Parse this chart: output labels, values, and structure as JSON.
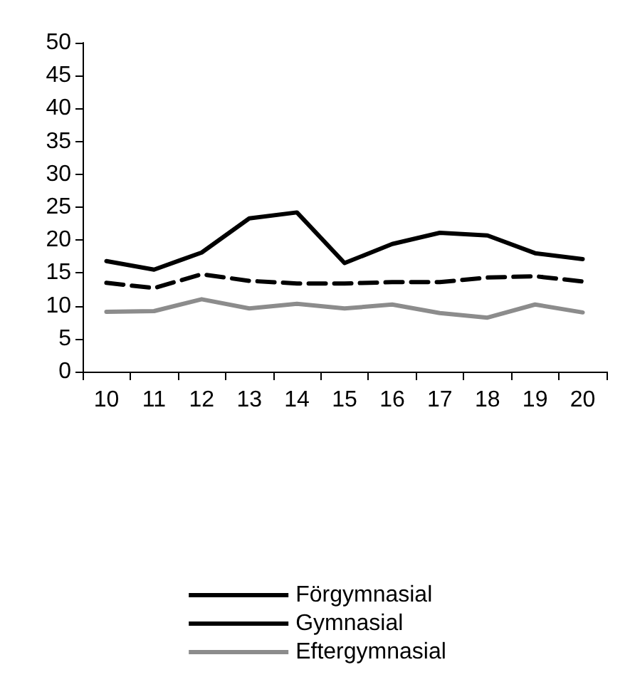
{
  "chart_data": {
    "type": "line",
    "categories": [
      "10",
      "11",
      "12",
      "13",
      "14",
      "15",
      "16",
      "17",
      "18",
      "19",
      "20"
    ],
    "series": [
      {
        "name": "Förgymnasial",
        "color": "#000000",
        "line_style": "solid",
        "values": [
          16.8,
          15.5,
          18.1,
          23.3,
          24.2,
          16.5,
          19.4,
          21.1,
          20.7,
          18.0,
          17.1
        ]
      },
      {
        "name": "Gymnasial",
        "color": "#000000",
        "line_style": "dashed",
        "values": [
          13.5,
          12.7,
          14.8,
          13.8,
          13.4,
          13.4,
          13.6,
          13.6,
          14.3,
          14.5,
          13.7
        ]
      },
      {
        "name": "Eftergymnasial",
        "color": "#8c8c8c",
        "line_style": "solid",
        "values": [
          9.1,
          9.2,
          11.0,
          9.6,
          10.3,
          9.6,
          10.2,
          8.9,
          8.2,
          10.2,
          9.0
        ]
      }
    ],
    "ylim": [
      0,
      50
    ],
    "yticks": [
      0,
      5,
      10,
      15,
      20,
      25,
      30,
      35,
      40,
      45,
      50
    ],
    "grid": false,
    "legend": "bottom",
    "marker": "none"
  }
}
